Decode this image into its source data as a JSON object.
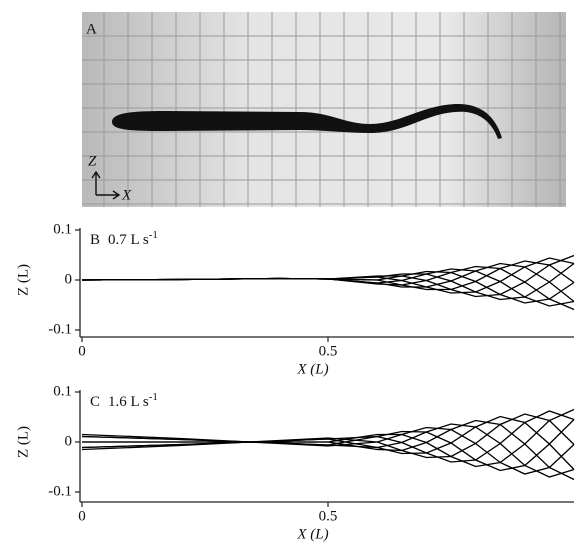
{
  "panel_a": {
    "label": "A",
    "z_axis": "Z",
    "x_axis": "X"
  },
  "chart_data": [
    {
      "type": "line",
      "panel_label": "B",
      "title": "0.7 L s",
      "title_superscript": "-1",
      "xlabel": "X (L)",
      "ylabel": "Z (L)",
      "x": [
        0,
        0.2,
        0.4,
        0.5,
        0.6,
        0.65,
        0.7,
        0.75,
        0.8,
        0.85,
        0.9,
        0.95,
        1.0
      ],
      "xlim": [
        0,
        1
      ],
      "ylim": [
        -0.1,
        0.1
      ],
      "xticks": [
        0,
        0.5
      ],
      "yticks": [
        -0.1,
        0,
        0.1
      ],
      "series": [
        {
          "color": "#000000",
          "values": [
            0,
            0.001,
            0.003,
            0.002,
            0,
            0.008,
            0.017,
            0.015,
            -0.003,
            -0.029,
            -0.046,
            -0.038,
            -0.005
          ]
        },
        {
          "color": "#000000",
          "values": [
            0,
            0.001,
            0.003,
            0.002,
            -0.006,
            -0.001,
            0.012,
            0.022,
            0.018,
            -0.003,
            -0.034,
            -0.052,
            -0.043
          ]
        },
        {
          "color": "#000000",
          "values": [
            0,
            0.001,
            0.003,
            0.002,
            -0.008,
            -0.01,
            -0.001,
            0.015,
            0.027,
            0.023,
            -0.004,
            -0.038,
            -0.059
          ]
        },
        {
          "color": "#000000",
          "values": [
            0,
            0.001,
            0.003,
            0.002,
            -0.006,
            -0.014,
            -0.014,
            -0.002,
            0.018,
            0.033,
            0.026,
            -0.004,
            -0.043
          ]
        },
        {
          "color": "#000000",
          "values": [
            0,
            0.001,
            0.003,
            0.002,
            0,
            -0.01,
            -0.019,
            -0.019,
            -0.003,
            0.023,
            0.038,
            0.03,
            -0.005
          ]
        },
        {
          "color": "#000000",
          "values": [
            0,
            0.001,
            0.003,
            0.002,
            0.006,
            -0.001,
            -0.014,
            -0.026,
            -0.024,
            -0.003,
            0.026,
            0.044,
            0.033
          ]
        },
        {
          "color": "#000000",
          "values": [
            0,
            0.001,
            0.003,
            0.002,
            0.008,
            0.008,
            -0.001,
            -0.019,
            -0.033,
            -0.029,
            -0.004,
            0.03,
            0.049
          ]
        },
        {
          "color": "#000000",
          "values": [
            0,
            0.001,
            0.003,
            0.002,
            0.006,
            0.012,
            0.012,
            -0.002,
            -0.024,
            -0.039,
            -0.034,
            -0.004,
            0.033
          ]
        }
      ]
    },
    {
      "type": "line",
      "panel_label": "C",
      "title": "1.6 L s",
      "title_superscript": "-1",
      "xlabel": "X (L)",
      "ylabel": "Z (L)",
      "x": [
        0,
        0.2,
        0.4,
        0.5,
        0.6,
        0.65,
        0.7,
        0.75,
        0.8,
        0.85,
        0.9,
        0.95,
        1.0
      ],
      "xlim": [
        0,
        1
      ],
      "ylim": [
        -0.1,
        0.1
      ],
      "xticks": [
        0,
        0.5
      ],
      "yticks": [
        -0.1,
        0,
        0.1
      ],
      "series": [
        {
          "color": "#000000",
          "values": [
            0.015,
            0.007,
            -0.003,
            -0.008,
            0,
            0.015,
            0.029,
            0.025,
            -0.003,
            -0.041,
            -0.064,
            -0.051,
            -0.005
          ]
        },
        {
          "color": "#000000",
          "values": [
            0.011,
            0.005,
            -0.002,
            -0.006,
            -0.011,
            -0.001,
            0.02,
            0.036,
            0.03,
            -0.003,
            -0.047,
            -0.07,
            -0.055
          ]
        },
        {
          "color": "#000000",
          "values": [
            0,
            0,
            0,
            0,
            -0.015,
            -0.017,
            -0.001,
            0.025,
            0.043,
            0.035,
            -0.004,
            -0.051,
            -0.075
          ]
        },
        {
          "color": "#000000",
          "values": [
            -0.011,
            -0.005,
            0.002,
            0.006,
            -0.011,
            -0.023,
            -0.022,
            -0.002,
            0.03,
            0.051,
            0.039,
            -0.004,
            -0.055
          ]
        },
        {
          "color": "#000000",
          "values": [
            -0.015,
            -0.007,
            0.003,
            0.008,
            0,
            -0.017,
            -0.031,
            -0.029,
            -0.003,
            0.035,
            0.056,
            0.043,
            -0.005
          ]
        },
        {
          "color": "#000000",
          "values": [
            -0.011,
            -0.005,
            0.002,
            0.006,
            0.011,
            -0.001,
            -0.022,
            -0.04,
            -0.036,
            -0.003,
            0.039,
            0.062,
            0.045
          ]
        },
        {
          "color": "#000000",
          "values": [
            0,
            0,
            0,
            0,
            0.015,
            0.015,
            -0.001,
            -0.029,
            -0.049,
            -0.041,
            -0.004,
            0.043,
            0.065
          ]
        },
        {
          "color": "#000000",
          "values": [
            0.011,
            0.005,
            -0.002,
            -0.006,
            0.011,
            0.021,
            0.02,
            -0.002,
            -0.036,
            -0.057,
            -0.047,
            -0.004,
            0.045
          ]
        }
      ]
    }
  ]
}
